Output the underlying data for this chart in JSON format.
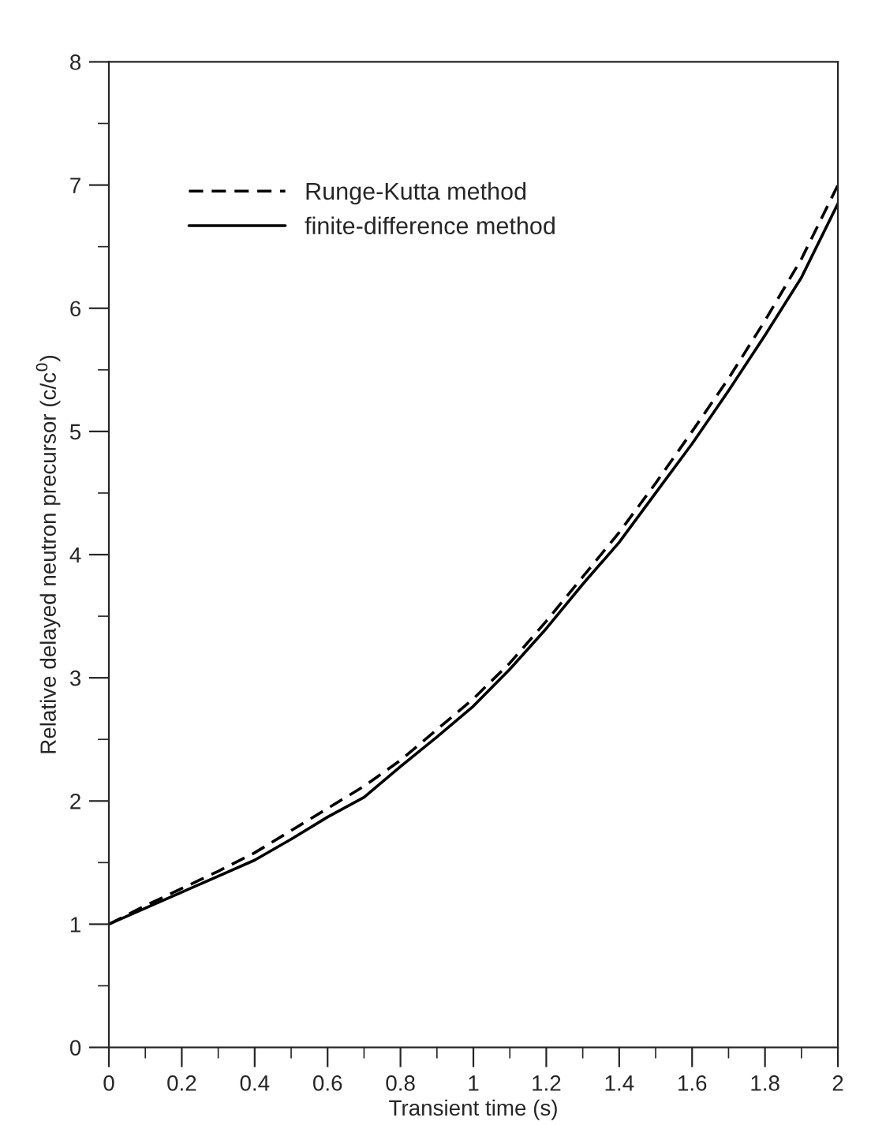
{
  "chart_data": {
    "type": "line",
    "xlabel": "Transient time (s)",
    "ylabel": "Relative delayed neutron precursor (c/c$^{0}$)",
    "x": [
      0,
      0.1,
      0.2,
      0.3,
      0.4,
      0.5,
      0.6,
      0.7,
      0.8,
      0.9,
      1.0,
      1.1,
      1.2,
      1.3,
      1.4,
      1.5,
      1.6,
      1.7,
      1.8,
      1.9,
      2.0
    ],
    "series": [
      {
        "name": "Runge-Kutta method",
        "color": "#000000",
        "line_style": "dashed",
        "values": [
          1.0,
          1.15,
          1.29,
          1.43,
          1.58,
          1.76,
          1.94,
          2.12,
          2.33,
          2.58,
          2.83,
          3.12,
          3.46,
          3.82,
          4.18,
          4.58,
          5.0,
          5.43,
          5.9,
          6.4,
          7.0
        ]
      },
      {
        "name": "finite-difference method",
        "color": "#000000",
        "line_style": "solid",
        "values": [
          1.0,
          1.13,
          1.26,
          1.39,
          1.52,
          1.69,
          1.87,
          2.03,
          2.28,
          2.52,
          2.77,
          3.07,
          3.4,
          3.76,
          4.1,
          4.5,
          4.9,
          5.33,
          5.78,
          6.25,
          6.85
        ]
      }
    ],
    "xlim": [
      0,
      2
    ],
    "ylim": [
      0,
      8
    ],
    "xticks": [
      0,
      0.2,
      0.4,
      0.6,
      0.8,
      1,
      1.2,
      1.4,
      1.6,
      1.8,
      2
    ],
    "yticks": [
      0,
      1,
      2,
      3,
      4,
      5,
      6,
      7,
      8
    ],
    "grid": false,
    "legend": "top left",
    "marker": "none"
  }
}
